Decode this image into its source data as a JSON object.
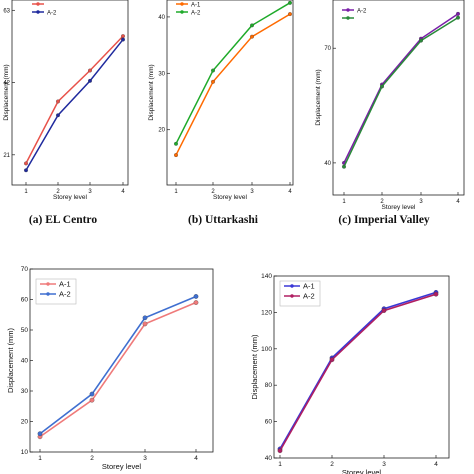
{
  "captions": [
    "(a) EL Centro",
    "(b) Uttarkashi",
    "(c) Imperial Valley"
  ],
  "chart_data": [
    {
      "type": "line",
      "caption": "(a) EL Centro",
      "xlabel": "Storey level",
      "ylabel": "Displacement (mm)",
      "categories": [
        "1",
        "2",
        "3",
        "4"
      ],
      "yticks": [
        "21",
        "42",
        "63"
      ],
      "ylim": [
        16,
        66
      ],
      "series": [
        {
          "name": "",
          "color": "#e8524a",
          "values": [
            18.5,
            36.5,
            45.5,
            55.5
          ]
        },
        {
          "name": "A-2",
          "color": "#1f2a9e",
          "values": [
            16.5,
            32.5,
            42.5,
            54.5
          ]
        }
      ],
      "legend": "top-left"
    },
    {
      "type": "line",
      "caption": "(b) Uttarkashi",
      "xlabel": "Storey level",
      "ylabel": "Displacement (mm)",
      "categories": [
        "1",
        "2",
        "3",
        "4"
      ],
      "yticks": [
        "20",
        "30",
        "40"
      ],
      "ylim": [
        12.5,
        43
      ],
      "series": [
        {
          "name": "A-1",
          "color": "#ff6a00",
          "values": [
            15.5,
            28.5,
            36.5,
            40.5
          ]
        },
        {
          "name": "A-2",
          "color": "#1faa2a",
          "values": [
            17.5,
            30.5,
            38.5,
            42.5
          ]
        }
      ],
      "legend": "top-left"
    },
    {
      "type": "line",
      "caption": "(c) Imperial Valley",
      "xlabel": "Storey level",
      "ylabel": "Displacement (mm)",
      "categories": [
        "1",
        "2",
        "3",
        "4"
      ],
      "yticks": [
        "40",
        "70"
      ],
      "ylim": [
        35,
        80
      ],
      "series": [
        {
          "name": "A-2",
          "color": "#7a1fa8",
          "values": [
            40,
            60.5,
            72.5,
            79
          ]
        },
        {
          "name": "",
          "color": "#2a8a3a",
          "values": [
            39,
            60,
            72,
            78
          ]
        }
      ],
      "legend": "top-left"
    },
    {
      "type": "line",
      "xlabel": "Storey level",
      "ylabel": "Displacement (mm)",
      "categories": [
        "1",
        "2",
        "3",
        "4"
      ],
      "yticks": [
        "10",
        "20",
        "30",
        "40",
        "50",
        "60",
        "70"
      ],
      "ylim": [
        10,
        70
      ],
      "series": [
        {
          "name": "A-1",
          "color": "#ef7a7a",
          "values": [
            15,
            27,
            52,
            59
          ]
        },
        {
          "name": "A-2",
          "color": "#3f6fd0",
          "values": [
            16,
            29,
            54,
            61
          ]
        }
      ],
      "legend": "top-left"
    },
    {
      "type": "line",
      "xlabel": "Storey level",
      "ylabel": "Displacement (mm)",
      "categories": [
        "1",
        "2",
        "3",
        "4"
      ],
      "yticks": [
        "40",
        "60",
        "80",
        "100",
        "120",
        "140"
      ],
      "ylim": [
        40,
        140
      ],
      "series": [
        {
          "name": "A-1",
          "color": "#3a37d6",
          "values": [
            45,
            95,
            122,
            131
          ]
        },
        {
          "name": "A-2",
          "color": "#b01f62",
          "values": [
            44,
            94,
            121,
            130
          ]
        }
      ],
      "legend": "top-left"
    }
  ]
}
